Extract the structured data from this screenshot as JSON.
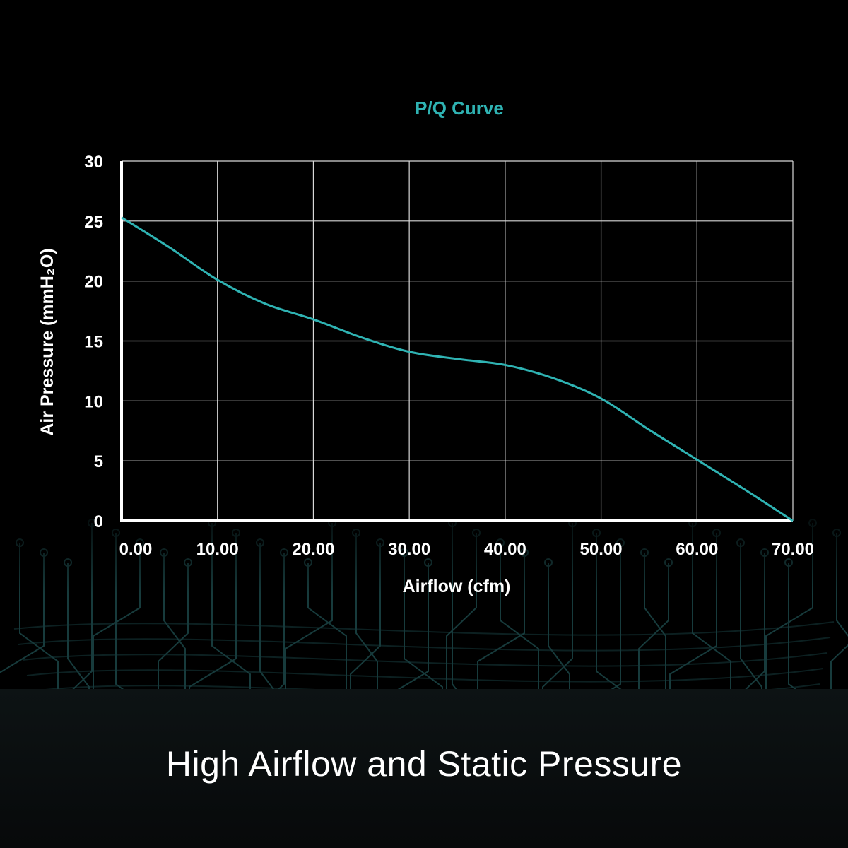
{
  "caption": "High Airflow and Static Pressure",
  "colors": {
    "accent": "#2fb3b3",
    "grid": "#d8d8d8",
    "text": "#ffffff",
    "background": "#000000"
  },
  "chart_data": {
    "type": "line",
    "title": "P/Q Curve",
    "xlabel": "Airflow (cfm)",
    "ylabel": "Air Pressure (mmH₂O)",
    "xlim": [
      0,
      70
    ],
    "ylim": [
      0,
      30
    ],
    "x_ticks": [
      "0.00",
      "10.00",
      "20.00",
      "30.00",
      "40.00",
      "50.00",
      "60.00",
      "70.00"
    ],
    "y_ticks": [
      "0",
      "5",
      "10",
      "15",
      "20",
      "25",
      "30"
    ],
    "grid": true,
    "series": [
      {
        "x": [
          0,
          5,
          10,
          15,
          20,
          25,
          30,
          35,
          40,
          45,
          50,
          55,
          60,
          65,
          70
        ],
        "y": [
          25.3,
          22.8,
          20.1,
          18.1,
          16.8,
          15.3,
          14.1,
          13.5,
          13.0,
          11.9,
          10.2,
          7.6,
          5.1,
          2.6,
          0
        ]
      }
    ]
  }
}
